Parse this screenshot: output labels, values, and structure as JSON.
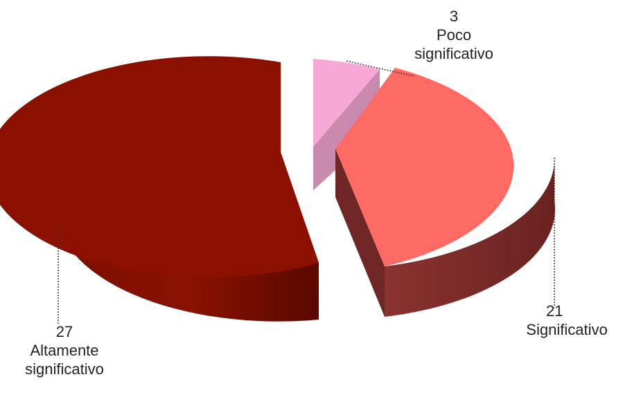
{
  "chart_data": {
    "type": "pie",
    "style": "3d-exploded",
    "title": "",
    "slices": [
      {
        "label_line1": "Altamente",
        "label_line2": "significativo",
        "value": 27,
        "color": "#8B1000",
        "side_color": "#6E0C00"
      },
      {
        "label_line1": "Poco",
        "label_line2": "significativo",
        "value": 3,
        "color": "#F7A8D6",
        "side_color": "#C989AE"
      },
      {
        "label_line1": "Significativo",
        "label_line2": "",
        "value": 21,
        "color": "#FF6A64",
        "side_color": "#7E2C29"
      }
    ],
    "legend": "none"
  }
}
